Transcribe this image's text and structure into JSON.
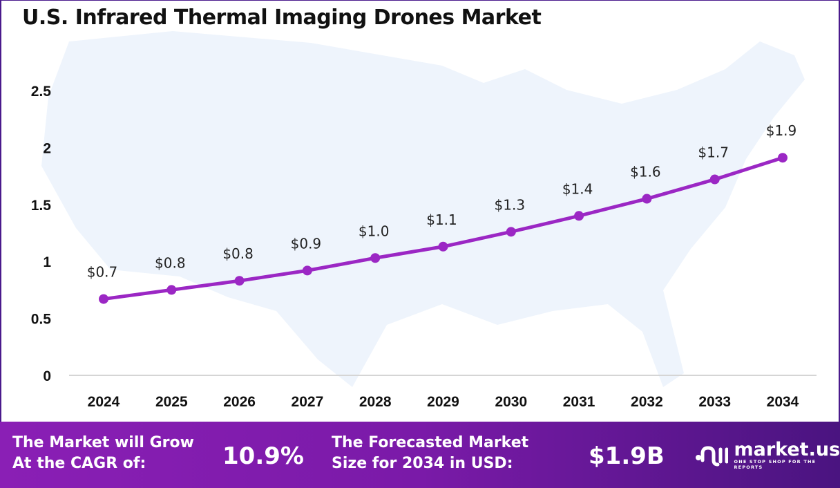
{
  "chart_data": {
    "type": "line",
    "title": "U.S. Infrared Thermal Imaging Drones Market",
    "categories": [
      "2024",
      "2025",
      "2026",
      "2027",
      "2028",
      "2029",
      "2030",
      "2031",
      "2032",
      "2033",
      "2034"
    ],
    "values": [
      0.67,
      0.75,
      0.83,
      0.92,
      1.03,
      1.13,
      1.26,
      1.4,
      1.55,
      1.72,
      1.91
    ],
    "data_labels": [
      "$0.7",
      "$0.8",
      "$0.8",
      "$0.9",
      "$1.0",
      "$1.1",
      "$1.3",
      "$1.4",
      "$1.6",
      "$1.7",
      "$1.9"
    ],
    "y_ticks": [
      "0",
      "0.5",
      "1",
      "1.5",
      "2",
      "2.5"
    ],
    "ylim": [
      0,
      2.5
    ],
    "grid": false,
    "line_color": "#9b27c4",
    "xlabel": "",
    "ylabel": ""
  },
  "footer": {
    "cagr_label_1": "The Market will Grow",
    "cagr_label_2": "At the CAGR of:",
    "cagr_value": "10.9%",
    "size_label_1": "The Forecasted Market",
    "size_label_2": "Size for 2034 in USD:",
    "size_value": "$1.9B",
    "logo_name": "market.us",
    "logo_tagline": "ONE STOP SHOP FOR THE REPORTS"
  }
}
